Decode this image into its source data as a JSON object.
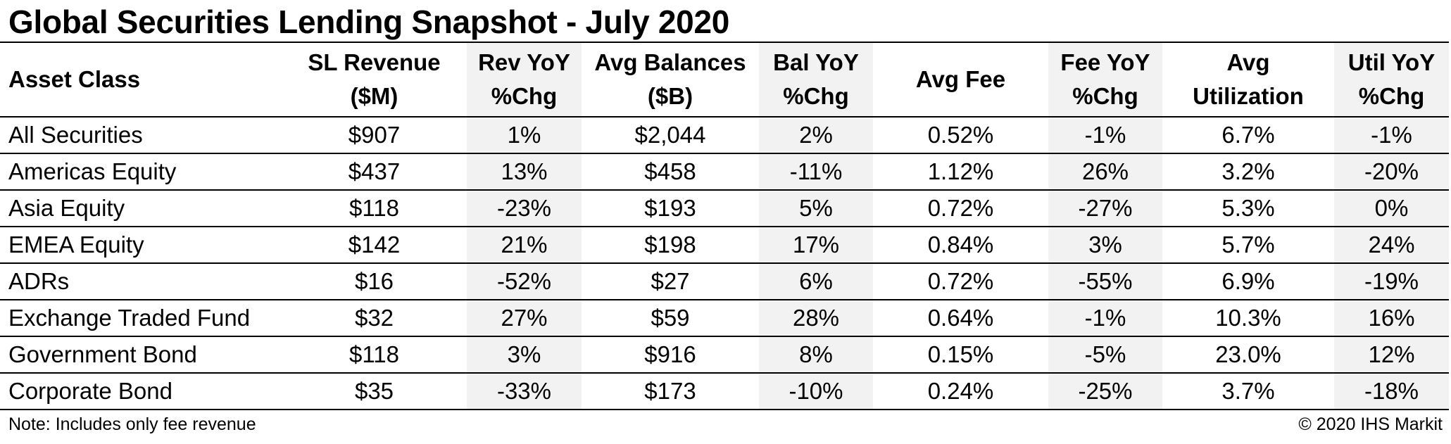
{
  "title": "Global Securities Lending Snapshot - July 2020",
  "columns": [
    {
      "line1": "Asset Class",
      "line2": ""
    },
    {
      "line1": "SL Revenue",
      "line2": "($M)"
    },
    {
      "line1": "Rev YoY",
      "line2": "%Chg"
    },
    {
      "line1": "Avg Balances",
      "line2": "($B)"
    },
    {
      "line1": "Bal YoY",
      "line2": "%Chg"
    },
    {
      "line1": "Avg Fee",
      "line2": ""
    },
    {
      "line1": "Fee YoY",
      "line2": "%Chg"
    },
    {
      "line1": "Avg",
      "line2": "Utilization"
    },
    {
      "line1": "Util YoY",
      "line2": "%Chg"
    }
  ],
  "rows": [
    [
      "All Securities",
      "$907",
      "1%",
      "$2,044",
      "2%",
      "0.52%",
      "-1%",
      "6.7%",
      "-1%"
    ],
    [
      "Americas Equity",
      "$437",
      "13%",
      "$458",
      "-11%",
      "1.12%",
      "26%",
      "3.2%",
      "-20%"
    ],
    [
      "Asia Equity",
      "$118",
      "-23%",
      "$193",
      "5%",
      "0.72%",
      "-27%",
      "5.3%",
      "0%"
    ],
    [
      "EMEA Equity",
      "$142",
      "21%",
      "$198",
      "17%",
      "0.84%",
      "3%",
      "5.7%",
      "24%"
    ],
    [
      "ADRs",
      "$16",
      "-52%",
      "$27",
      "6%",
      "0.72%",
      "-55%",
      "6.9%",
      "-19%"
    ],
    [
      "Exchange Traded Fund",
      "$32",
      "27%",
      "$59",
      "28%",
      "0.64%",
      "-1%",
      "10.3%",
      "16%"
    ],
    [
      "Government Bond",
      "$118",
      "3%",
      "$916",
      "8%",
      "0.15%",
      "-5%",
      "23.0%",
      "12%"
    ],
    [
      "Corporate Bond",
      "$35",
      "-33%",
      "$173",
      "-10%",
      "0.24%",
      "-25%",
      "3.7%",
      "-18%"
    ]
  ],
  "footer": {
    "note": "Note: Includes only fee revenue",
    "copyright": "© 2020 IHS Markit"
  }
}
